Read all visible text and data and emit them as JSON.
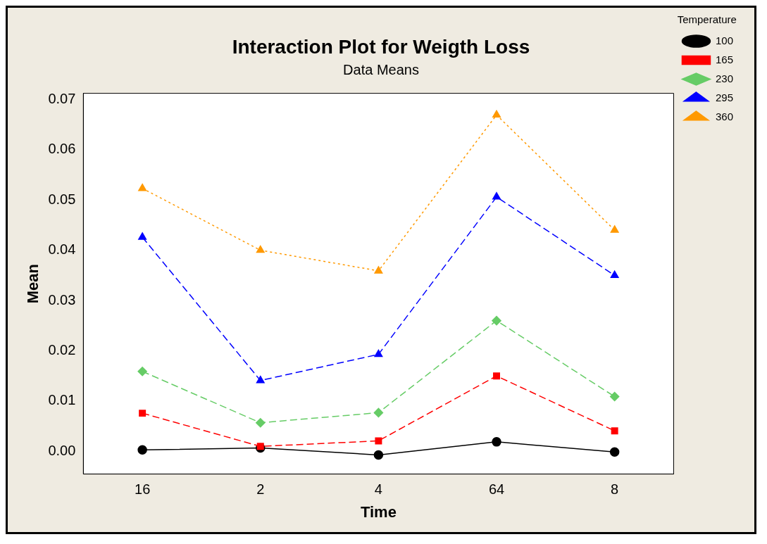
{
  "chart_data": {
    "type": "line",
    "title": "Interaction Plot for Weigth Loss",
    "subtitle": "Data Means",
    "xlabel": "Time",
    "ylabel": "Mean",
    "legend_title": "Temperature",
    "legend": "top right",
    "grid": false,
    "categories": [
      "16",
      "2",
      "4",
      "64",
      "8"
    ],
    "ylim": [
      -0.0045,
      0.0712
    ],
    "yticks": [
      {
        "value": 0,
        "label": "0.00"
      },
      {
        "value": 0.01,
        "label": "0.01"
      },
      {
        "value": 0.02,
        "label": "0.02"
      },
      {
        "value": 0.03,
        "label": "0.03"
      },
      {
        "value": 0.04,
        "label": "0.04"
      },
      {
        "value": 0.05,
        "label": "0.05"
      },
      {
        "value": 0.06,
        "label": "0.06"
      },
      {
        "value": 0.07,
        "label": "0.07"
      }
    ],
    "series": [
      {
        "name": "100",
        "color": "#000000",
        "marker": "circle",
        "line_style": "solid",
        "values": [
          0.0003,
          0.0007,
          -0.0007,
          0.0019,
          -0.0001
        ]
      },
      {
        "name": "165",
        "color": "#ff0000",
        "marker": "square",
        "line_style": "dashed",
        "values": [
          0.0076,
          0.001,
          0.0021,
          0.015,
          0.0041
        ]
      },
      {
        "name": "230",
        "color": "#66cc66",
        "marker": "diamond",
        "line_style": "dashed",
        "values": [
          0.0159,
          0.0057,
          0.0077,
          0.026,
          0.0109
        ]
      },
      {
        "name": "295",
        "color": "#0000ff",
        "marker": "triangle",
        "line_style": "dashed",
        "values": [
          0.0426,
          0.0141,
          0.0193,
          0.0506,
          0.035
        ]
      },
      {
        "name": "360",
        "color": "#ff9900",
        "marker": "triangle",
        "line_style": "dotted",
        "values": [
          0.0523,
          0.04,
          0.0359,
          0.0669,
          0.044
        ]
      }
    ]
  }
}
